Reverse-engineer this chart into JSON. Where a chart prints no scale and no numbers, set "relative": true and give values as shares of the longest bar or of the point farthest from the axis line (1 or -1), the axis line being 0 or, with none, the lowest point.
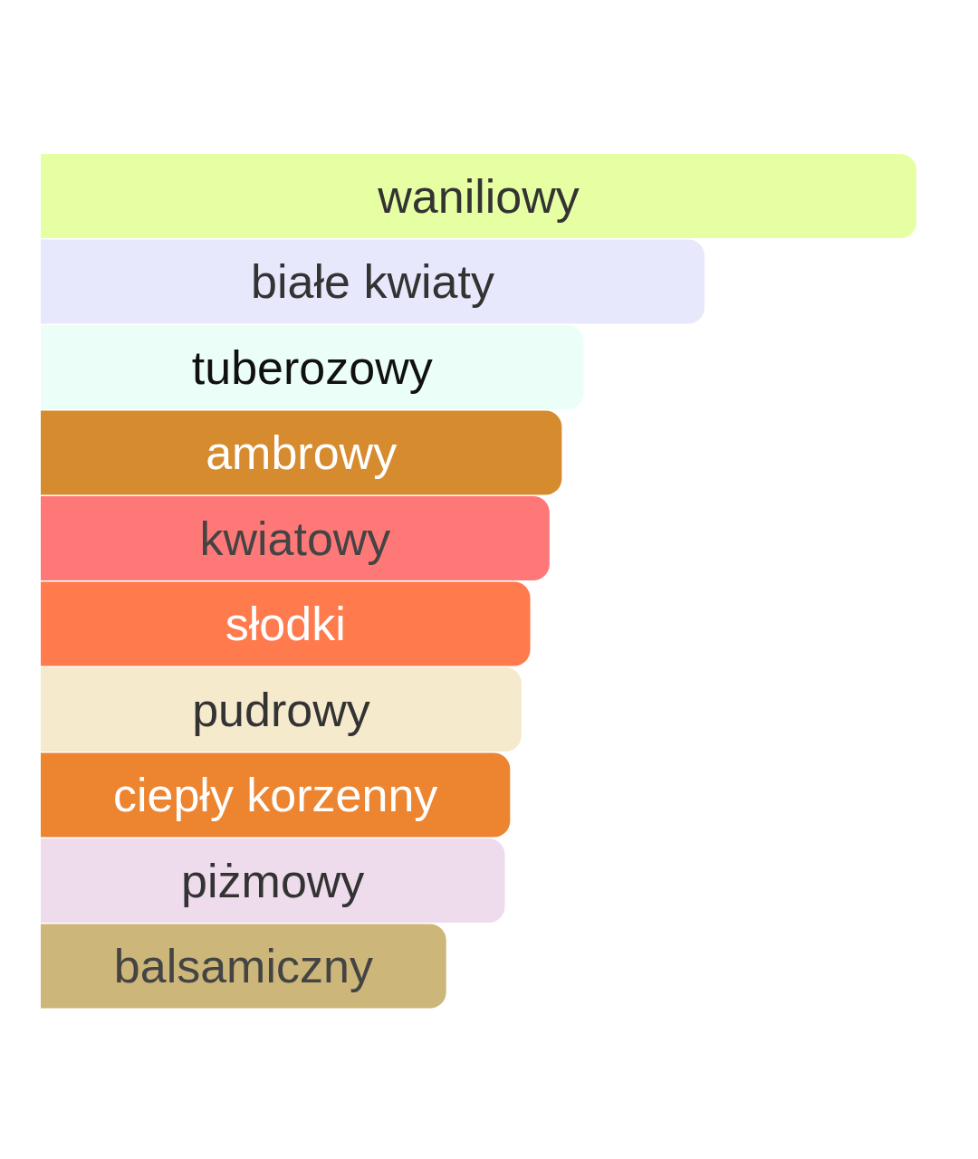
{
  "chart_data": {
    "type": "bar",
    "orientation": "horizontal",
    "relative": true,
    "categories": [
      "waniliowy",
      "białe kwiaty",
      "tuberozowy",
      "ambrowy",
      "kwiatowy",
      "słodki",
      "pudrowy",
      "ciepły korzenny",
      "piżmowy",
      "balsamiczny"
    ],
    "values": [
      1,
      0.758,
      0.62,
      0.595,
      0.581,
      0.559,
      0.549,
      0.536,
      0.53,
      0.463
    ],
    "colors": [
      "#e6ffa3",
      "#e8e8fc",
      "#ebfff8",
      "#d68c2e",
      "#ff7878",
      "#ff7a4d",
      "#f6eacd",
      "#ed8430",
      "#eedcec",
      "#cdb679"
    ]
  }
}
